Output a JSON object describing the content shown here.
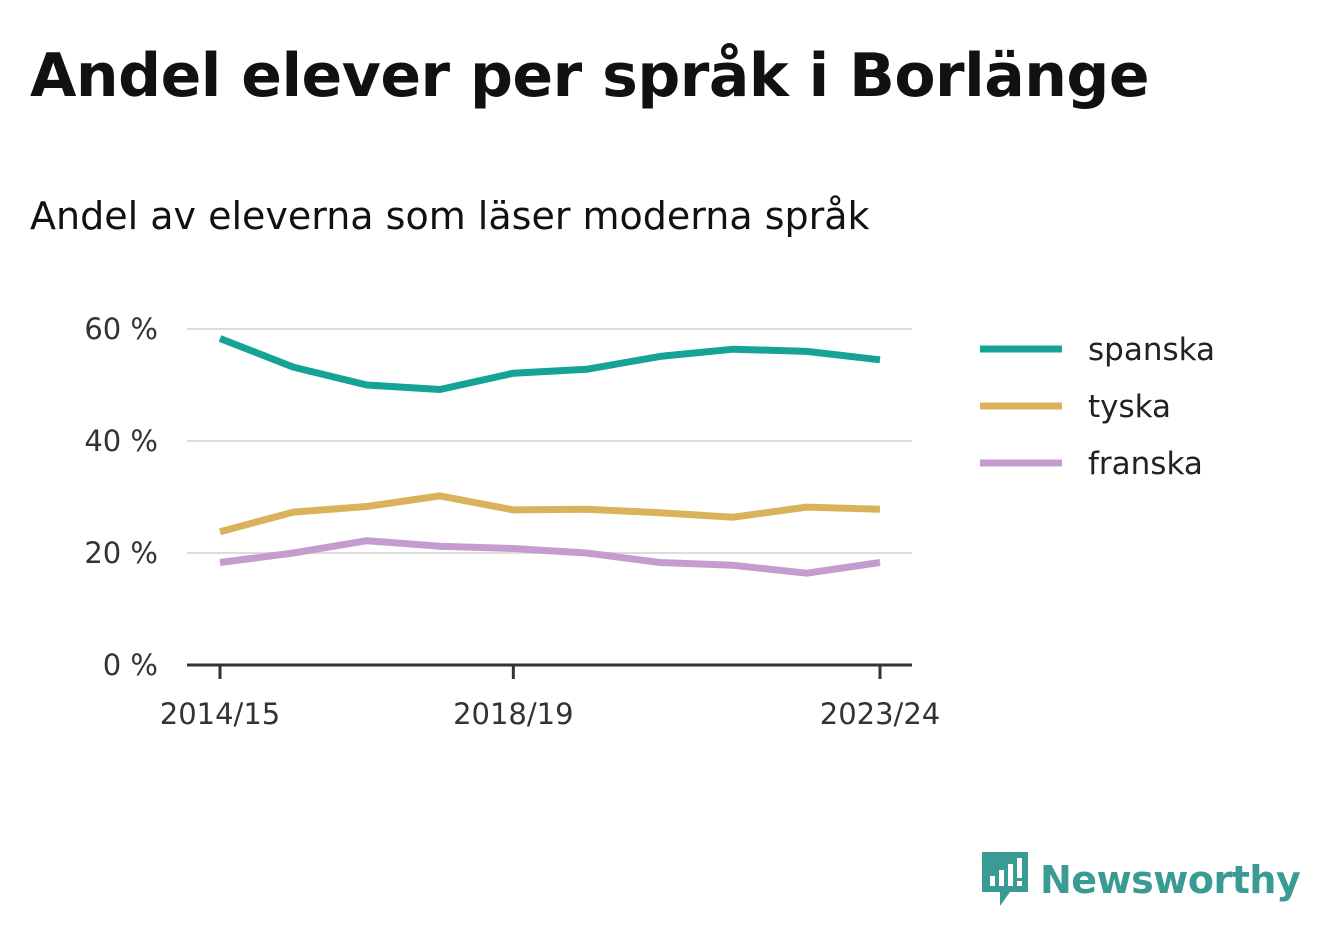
{
  "title": "Andel elever per språk i Borlänge",
  "subtitle": "Andel av eleverna som läser moderna språk",
  "brand": {
    "name": "Newsworthy",
    "color": "#3a9a94",
    "icon": "newsworthy-logo-icon"
  },
  "chart_data": {
    "type": "line",
    "x": [
      "2014/15",
      "2015/16",
      "2016/17",
      "2017/18",
      "2018/19",
      "2019/20",
      "2020/21",
      "2021/22",
      "2022/23",
      "2023/24"
    ],
    "x_tick_labels": [
      "2014/15",
      "2018/19",
      "2023/24"
    ],
    "y_tick_labels": [
      "0 %",
      "20 %",
      "40 %",
      "60 %"
    ],
    "y_ticks": [
      0,
      20,
      40,
      60
    ],
    "ylim": [
      0,
      60
    ],
    "grid": true,
    "legend_position": "right",
    "series": [
      {
        "name": "spanska",
        "color": "#14a395",
        "values": [
          58.3,
          53.2,
          50.0,
          49.2,
          52.1,
          52.8,
          55.1,
          56.4,
          56.0,
          54.5
        ]
      },
      {
        "name": "tyska",
        "color": "#dbb25c",
        "values": [
          23.8,
          27.3,
          28.3,
          30.2,
          27.7,
          27.8,
          27.2,
          26.4,
          28.2,
          27.8
        ]
      },
      {
        "name": "franska",
        "color": "#c49ccf",
        "values": [
          18.3,
          20.0,
          22.2,
          21.2,
          20.8,
          20.0,
          18.3,
          17.8,
          16.4,
          18.3
        ]
      }
    ]
  }
}
